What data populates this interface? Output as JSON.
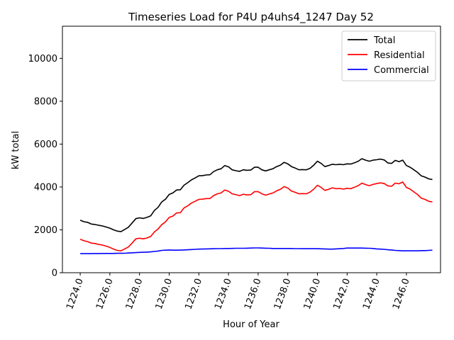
{
  "chart_data": {
    "type": "line",
    "title": "Timeseries Load for P4U p4uhs4_1247  Day 52",
    "xlabel": "Hour of Year",
    "ylabel": "kW total",
    "xlim": [
      1222.8,
      1248.3
    ],
    "ylim": [
      0,
      11500
    ],
    "xticks": [
      1224,
      1226,
      1228,
      1230,
      1232,
      1234,
      1236,
      1238,
      1240,
      1242,
      1244,
      1246
    ],
    "xtick_labels": [
      "1224.0",
      "1226.0",
      "1228.0",
      "1230.0",
      "1232.0",
      "1234.0",
      "1236.0",
      "1238.0",
      "1240.0",
      "1242.0",
      "1244.0",
      "1246.0"
    ],
    "yticks": [
      0,
      2000,
      4000,
      6000,
      8000,
      10000
    ],
    "ytick_labels": [
      "0",
      "2000",
      "4000",
      "6000",
      "8000",
      "10000"
    ],
    "grid": false,
    "legend_position": "top-right",
    "x": [
      1224.0,
      1224.25,
      1224.5,
      1224.75,
      1225.0,
      1225.25,
      1225.5,
      1225.75,
      1226.0,
      1226.25,
      1226.5,
      1226.75,
      1227.0,
      1227.25,
      1227.5,
      1227.75,
      1228.0,
      1228.25,
      1228.5,
      1228.75,
      1229.0,
      1229.25,
      1229.5,
      1229.75,
      1230.0,
      1230.25,
      1230.5,
      1230.75,
      1231.0,
      1231.25,
      1231.5,
      1231.75,
      1232.0,
      1232.25,
      1232.5,
      1232.75,
      1233.0,
      1233.25,
      1233.5,
      1233.75,
      1234.0,
      1234.25,
      1234.5,
      1234.75,
      1235.0,
      1235.25,
      1235.5,
      1235.75,
      1236.0,
      1236.25,
      1236.5,
      1236.75,
      1237.0,
      1237.25,
      1237.5,
      1237.75,
      1238.0,
      1238.25,
      1238.5,
      1238.75,
      1239.0,
      1239.25,
      1239.5,
      1239.75,
      1240.0,
      1240.25,
      1240.5,
      1240.75,
      1241.0,
      1241.25,
      1241.5,
      1241.75,
      1242.0,
      1242.25,
      1242.5,
      1242.75,
      1243.0,
      1243.25,
      1243.5,
      1243.75,
      1244.0,
      1244.25,
      1244.5,
      1244.75,
      1245.0,
      1245.25,
      1245.5,
      1245.75,
      1246.0,
      1246.25,
      1246.5,
      1246.75,
      1247.0,
      1247.25,
      1247.5,
      1247.75
    ],
    "series": [
      {
        "name": "Total",
        "color": "#000000",
        "values": [
          2450,
          2380,
          2350,
          2270,
          2250,
          2210,
          2180,
          2130,
          2080,
          2000,
          1940,
          1920,
          2020,
          2120,
          2320,
          2520,
          2560,
          2530,
          2580,
          2650,
          2900,
          3050,
          3300,
          3430,
          3650,
          3720,
          3860,
          3870,
          4080,
          4200,
          4330,
          4420,
          4520,
          4530,
          4560,
          4570,
          4720,
          4800,
          4850,
          5000,
          4940,
          4800,
          4760,
          4730,
          4800,
          4780,
          4790,
          4920,
          4920,
          4800,
          4750,
          4800,
          4850,
          4950,
          5020,
          5150,
          5080,
          4950,
          4880,
          4800,
          4810,
          4800,
          4870,
          5020,
          5200,
          5100,
          4950,
          5000,
          5060,
          5040,
          5060,
          5040,
          5080,
          5070,
          5130,
          5200,
          5320,
          5250,
          5200,
          5250,
          5270,
          5300,
          5260,
          5120,
          5100,
          5240,
          5180,
          5250,
          5000,
          4920,
          4800,
          4680,
          4520,
          4460,
          4380,
          4350
        ]
      },
      {
        "name": "Residential",
        "color": "#ff0000",
        "values": [
          1560,
          1490,
          1450,
          1380,
          1360,
          1320,
          1290,
          1240,
          1180,
          1100,
          1040,
          1020,
          1110,
          1200,
          1380,
          1580,
          1610,
          1580,
          1620,
          1690,
          1900,
          2040,
          2240,
          2370,
          2580,
          2640,
          2790,
          2800,
          3020,
          3120,
          3250,
          3330,
          3420,
          3430,
          3460,
          3460,
          3600,
          3680,
          3720,
          3860,
          3800,
          3680,
          3640,
          3600,
          3660,
          3630,
          3640,
          3780,
          3780,
          3680,
          3620,
          3670,
          3720,
          3820,
          3890,
          4020,
          3950,
          3810,
          3750,
          3680,
          3690,
          3680,
          3760,
          3900,
          4080,
          3980,
          3840,
          3890,
          3960,
          3920,
          3930,
          3900,
          3940,
          3920,
          3990,
          4060,
          4180,
          4110,
          4060,
          4120,
          4160,
          4190,
          4160,
          4050,
          4030,
          4180,
          4150,
          4230,
          3980,
          3900,
          3770,
          3650,
          3480,
          3420,
          3330,
          3300
        ]
      },
      {
        "name": "Commercial",
        "color": "#0000ff",
        "values": [
          890,
          890,
          890,
          890,
          895,
          895,
          900,
          900,
          900,
          900,
          905,
          905,
          910,
          920,
          930,
          940,
          950,
          955,
          960,
          970,
          990,
          1010,
          1040,
          1050,
          1060,
          1050,
          1050,
          1055,
          1060,
          1070,
          1080,
          1090,
          1100,
          1105,
          1110,
          1115,
          1120,
          1125,
          1125,
          1130,
          1130,
          1135,
          1140,
          1140,
          1140,
          1145,
          1150,
          1155,
          1155,
          1150,
          1145,
          1140,
          1130,
          1130,
          1130,
          1130,
          1130,
          1130,
          1125,
          1125,
          1120,
          1120,
          1120,
          1120,
          1120,
          1115,
          1110,
          1100,
          1100,
          1110,
          1120,
          1130,
          1150,
          1150,
          1150,
          1150,
          1150,
          1145,
          1140,
          1130,
          1110,
          1100,
          1090,
          1070,
          1060,
          1040,
          1030,
          1020,
          1020,
          1020,
          1020,
          1020,
          1030,
          1030,
          1040,
          1050
        ]
      }
    ]
  }
}
